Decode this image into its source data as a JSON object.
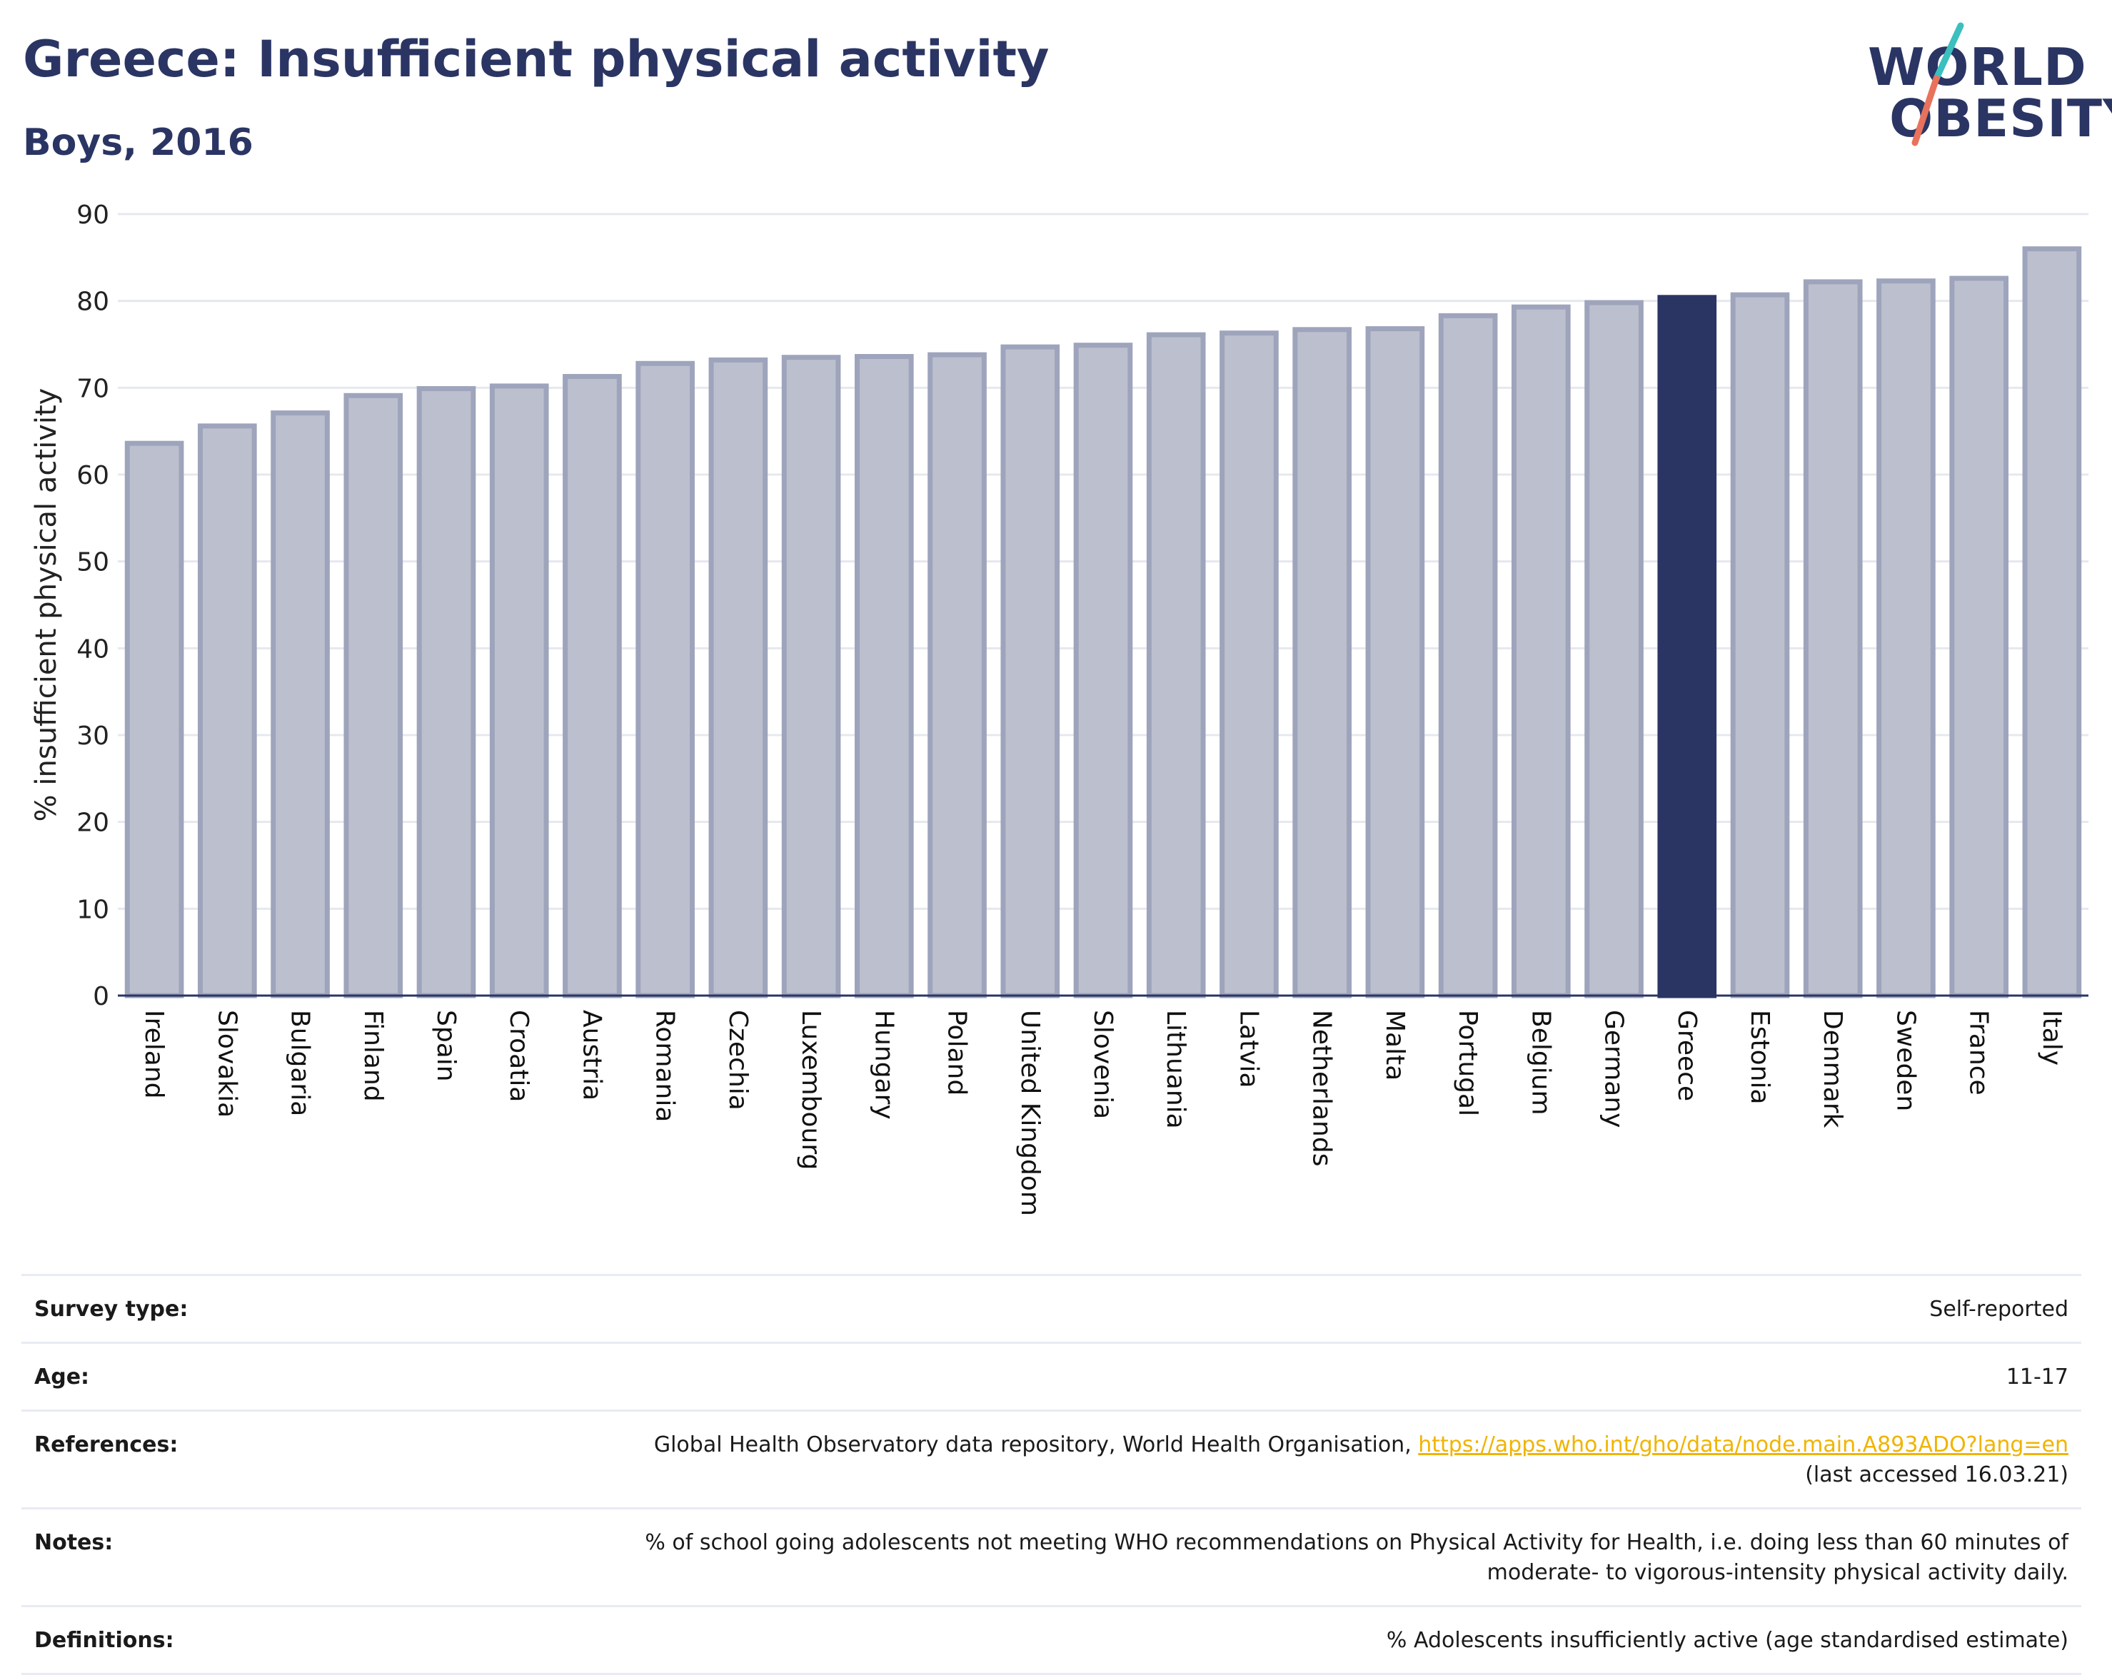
{
  "title": "Greece: Insufficient physical activity",
  "subtitle": "Boys, 2016",
  "logo": {
    "line1": "WORLD",
    "line2": "OBESITY"
  },
  "colors": {
    "highlight": "#2a3564",
    "bar_fill": "#bcc0ce",
    "bar_stroke": "#9ea4bb",
    "title": "#2a3564",
    "link": "#f0b400",
    "slash_top": "#3bbfbf",
    "slash_bottom": "#e8725c"
  },
  "chart_data": {
    "type": "bar",
    "title": "Greece: Insufficient physical activity",
    "subtitle": "Boys, 2016",
    "xlabel": "",
    "ylabel": "% insufficient physical activity",
    "ylim": [
      0,
      90
    ],
    "yticks": [
      0,
      10,
      20,
      30,
      40,
      50,
      60,
      70,
      80,
      90
    ],
    "grid": true,
    "highlight": "Greece",
    "categories": [
      "Ireland",
      "Slovakia",
      "Bulgaria",
      "Finland",
      "Spain",
      "Croatia",
      "Austria",
      "Romania",
      "Czechia",
      "Luxembourg",
      "Hungary",
      "Poland",
      "United Kingdom",
      "Slovenia",
      "Lithuania",
      "Latvia",
      "Netherlands",
      "Malta",
      "Portugal",
      "Belgium",
      "Germany",
      "Greece",
      "Estonia",
      "Denmark",
      "Sweden",
      "France",
      "Italy"
    ],
    "values": [
      63.6,
      65.6,
      67.1,
      69.1,
      69.9,
      70.2,
      71.3,
      72.8,
      73.2,
      73.5,
      73.6,
      73.8,
      74.7,
      74.9,
      76.1,
      76.3,
      76.7,
      76.8,
      78.3,
      79.3,
      79.8,
      80.4,
      80.7,
      82.2,
      82.3,
      82.6,
      86.0
    ]
  },
  "info": [
    {
      "label": "Survey type:",
      "value": "Self-reported"
    },
    {
      "label": "Age:",
      "value": "11-17"
    },
    {
      "label": "References:",
      "value": "Global Health Observatory data repository, World Health Organisation, ",
      "link": "https://apps.who.int/gho/data/node.main.A893ADO?lang=en",
      "value2": "(last accessed 16.03.21)"
    },
    {
      "label": "Notes:",
      "value": "% of school going adolescents not meeting WHO recommendations on Physical Activity for Health, i.e. doing less than 60 minutes of moderate- to vigorous-intensity physical activity daily."
    },
    {
      "label": "Definitions:",
      "value": "% Adolescents insufficiently active (age standardised estimate)"
    }
  ]
}
